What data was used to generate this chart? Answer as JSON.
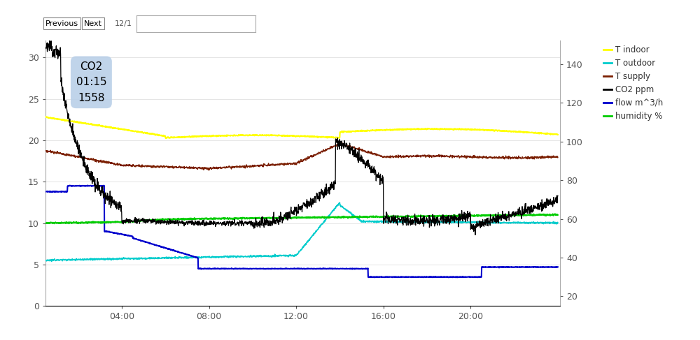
{
  "xlim": [
    0.5,
    24.1
  ],
  "ylim_left": [
    0,
    32
  ],
  "ylim_right": [
    15,
    152
  ],
  "yticks_left": [
    0,
    5,
    10,
    15,
    20,
    25,
    30
  ],
  "yticks_right": [
    20,
    40,
    60,
    80,
    100,
    120,
    140
  ],
  "x_tick_positions": [
    4,
    8,
    12,
    16,
    20
  ],
  "x_tick_labels": [
    "04:00",
    "08:00",
    "12:00",
    "16:00",
    "20:00"
  ],
  "legend_labels": [
    "T indoor",
    "T outdoor",
    "T supply",
    "CO2 ppm",
    "flow m^3/h",
    "humidity %"
  ],
  "legend_colors": [
    "#ffff00",
    "#00cccc",
    "#7a1e00",
    "#000000",
    "#0000cc",
    "#00cc00"
  ],
  "bg_color": "#ffffff",
  "grid_color": "#e0e0e0",
  "tooltip_text": "CO2\n01:15\n1558",
  "tooltip_bg": "#b8cfe8",
  "noise_seed": 42
}
